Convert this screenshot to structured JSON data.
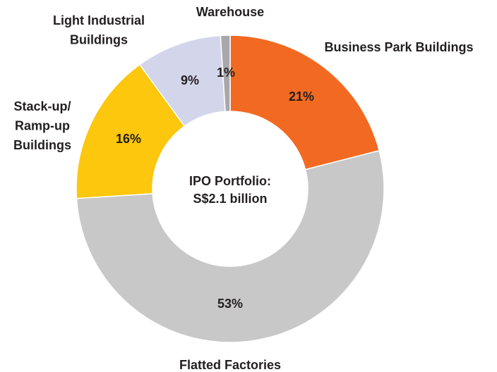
{
  "chart_data": {
    "type": "donut",
    "categories": [
      [
        "Business Park Buildings"
      ],
      [
        "Flatted Factories"
      ],
      [
        "Stack-up/",
        "Ramp-up",
        "Buildings"
      ],
      [
        "Light Industrial",
        "Buildings"
      ],
      [
        "Warehouse"
      ]
    ],
    "values": [
      21,
      53,
      16,
      9,
      1
    ],
    "value_labels": [
      "21%",
      "53%",
      "16%",
      "9%",
      "1%"
    ],
    "colors": [
      "#f26a22",
      "#c8c8c9",
      "#fcc70c",
      "#d3d6eb",
      "#a7a8aa"
    ],
    "center_label": [
      "IPO Portfolio:",
      "S$2.1 billion"
    ]
  }
}
